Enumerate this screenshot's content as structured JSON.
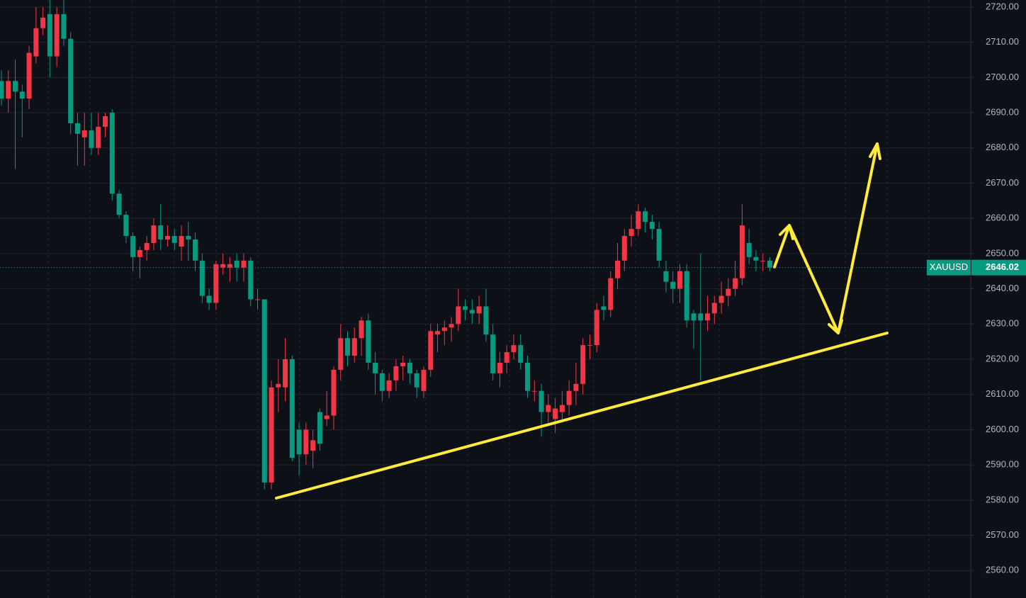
{
  "chart_data": {
    "type": "candlestick",
    "symbol": "XAUUSD",
    "last_price": 2646.02,
    "up_color": "#f23645",
    "down_color": "#089981",
    "grid": true,
    "ylim": [
      2552.2,
      2722.0
    ],
    "yticks": [
      {
        "value": 2560,
        "label": "2560.00"
      },
      {
        "value": 2570,
        "label": "2570.00"
      },
      {
        "value": 2580,
        "label": "2580.00"
      },
      {
        "value": 2590,
        "label": "2590.00"
      },
      {
        "value": 2600,
        "label": "2600.00"
      },
      {
        "value": 2610,
        "label": "2610.00"
      },
      {
        "value": 2620,
        "label": "2620.00"
      },
      {
        "value": 2630,
        "label": "2630.00"
      },
      {
        "value": 2640,
        "label": "2640.00"
      },
      {
        "value": 2650,
        "label": "2650.00"
      },
      {
        "value": 2660,
        "label": "2660.00"
      },
      {
        "value": 2670,
        "label": "2670.00"
      },
      {
        "value": 2680,
        "label": "2680.00"
      },
      {
        "value": 2690,
        "label": "2690.00"
      },
      {
        "value": 2700,
        "label": "2700.00"
      },
      {
        "value": 2710,
        "label": "2710.00"
      },
      {
        "value": 2720,
        "label": "2720.00"
      }
    ],
    "open": [
      2699,
      2694,
      2699,
      2696,
      2694,
      2706,
      2714,
      2718,
      2706,
      2718,
      2711,
      2687,
      2683,
      2685,
      2680,
      2686,
      2690,
      2667,
      2661,
      2655,
      2649,
      2651,
      2653,
      2658,
      2654,
      2655,
      2652,
      2655,
      2654,
      2648,
      2638,
      2636,
      2646,
      2646,
      2648,
      2646,
      2648,
      2637,
      2637,
      2585,
      2612,
      2612,
      2620,
      2600,
      2593,
      2594,
      2605,
      2603,
      2604,
      2617,
      2626,
      2621,
      2626,
      2631,
      2619,
      2616,
      2611,
      2614,
      2618,
      2619,
      2616,
      2611,
      2617,
      2627,
      2628,
      2629,
      2630,
      2635,
      2634,
      2633,
      2635,
      2627,
      2616,
      2619,
      2622,
      2624,
      2619,
      2611,
      2611,
      2605,
      2603,
      2605,
      2607,
      2611,
      2613,
      2624,
      2624,
      2635,
      2634,
      2643,
      2648,
      2655,
      2657,
      2662,
      2659,
      2657,
      2645,
      2642,
      2640,
      2645,
      2633,
      2633,
      2631,
      2633,
      2636,
      2638,
      2640,
      2643,
      2653,
      2649,
      2648,
      2648
    ],
    "high": [
      2702,
      2702,
      2705,
      2698,
      2709,
      2720,
      2720,
      2722,
      2720,
      2722,
      2713,
      2690,
      2690,
      2690,
      2690,
      2690,
      2691,
      2668,
      2662,
      2656,
      2652,
      2655,
      2660,
      2664,
      2658,
      2657,
      2658,
      2659,
      2656,
      2650,
      2640,
      2648,
      2650,
      2649,
      2650,
      2650,
      2649,
      2640,
      2637,
      2614,
      2620,
      2626,
      2621,
      2602,
      2602,
      2600,
      2606,
      2611,
      2618,
      2630,
      2628,
      2629,
      2632,
      2633,
      2622,
      2617,
      2616,
      2620,
      2621,
      2620,
      2617,
      2618,
      2630,
      2630,
      2631,
      2632,
      2640,
      2637,
      2637,
      2638,
      2640,
      2630,
      2622,
      2624,
      2627,
      2627,
      2621,
      2614,
      2613,
      2610,
      2609,
      2611,
      2614,
      2619,
      2626,
      2627,
      2636,
      2638,
      2645,
      2653,
      2657,
      2661,
      2664,
      2663,
      2661,
      2659,
      2648,
      2645,
      2647,
      2647,
      2634,
      2650,
      2638,
      2638,
      2642,
      2643,
      2648,
      2664,
      2657,
      2651,
      2650,
      2649
    ],
    "low": [
      2692,
      2690,
      2674,
      2683,
      2691,
      2704,
      2712,
      2700,
      2703,
      2709,
      2684,
      2675,
      2675,
      2678,
      2678,
      2683,
      2665,
      2660,
      2653,
      2645,
      2643,
      2648,
      2651,
      2651,
      2652,
      2651,
      2648,
      2648,
      2645,
      2636,
      2634,
      2634,
      2644,
      2642,
      2642,
      2642,
      2635,
      2634,
      2583,
      2583,
      2605,
      2608,
      2591,
      2587,
      2590,
      2589,
      2594,
      2601,
      2600,
      2614,
      2618,
      2619,
      2621,
      2617,
      2610,
      2608,
      2609,
      2611,
      2614,
      2613,
      2609,
      2609,
      2615,
      2622,
      2624,
      2625,
      2628,
      2631,
      2630,
      2630,
      2625,
      2614,
      2612,
      2616,
      2620,
      2617,
      2609,
      2608,
      2598,
      2602,
      2599,
      2603,
      2604,
      2607,
      2610,
      2620,
      2622,
      2631,
      2632,
      2640,
      2645,
      2652,
      2655,
      2656,
      2654,
      2646,
      2639,
      2636,
      2636,
      2629,
      2623,
      2614,
      2628,
      2630,
      2633,
      2635,
      2638,
      2641,
      2647,
      2645,
      2645,
      2645
    ],
    "close": [
      2694,
      2699,
      2696,
      2694,
      2707,
      2714,
      2717,
      2706,
      2718,
      2711,
      2687,
      2684,
      2685,
      2680,
      2686,
      2689,
      2667,
      2661,
      2655,
      2649,
      2651,
      2653,
      2658,
      2654,
      2655,
      2653,
      2655,
      2654,
      2648,
      2638,
      2636,
      2647,
      2647,
      2647,
      2646,
      2648,
      2637,
      2637,
      2585,
      2612,
      2613,
      2620,
      2592,
      2593,
      2600,
      2597,
      2596,
      2604,
      2617,
      2626,
      2621,
      2626,
      2631,
      2619,
      2616,
      2611,
      2614,
      2618,
      2619,
      2616,
      2612,
      2617,
      2628,
      2628,
      2629,
      2630,
      2635,
      2634,
      2633,
      2635,
      2627,
      2616,
      2619,
      2622,
      2624,
      2619,
      2611,
      2611,
      2605,
      2607,
      2606,
      2607,
      2611,
      2613,
      2624,
      2624,
      2634,
      2634,
      2643,
      2648,
      2655,
      2657,
      2662,
      2659,
      2657,
      2648,
      2642,
      2640,
      2645,
      2631,
      2631,
      2631,
      2633,
      2636,
      2638,
      2640,
      2643,
      2658,
      2649,
      2648,
      2648,
      2646.02
    ]
  }
}
